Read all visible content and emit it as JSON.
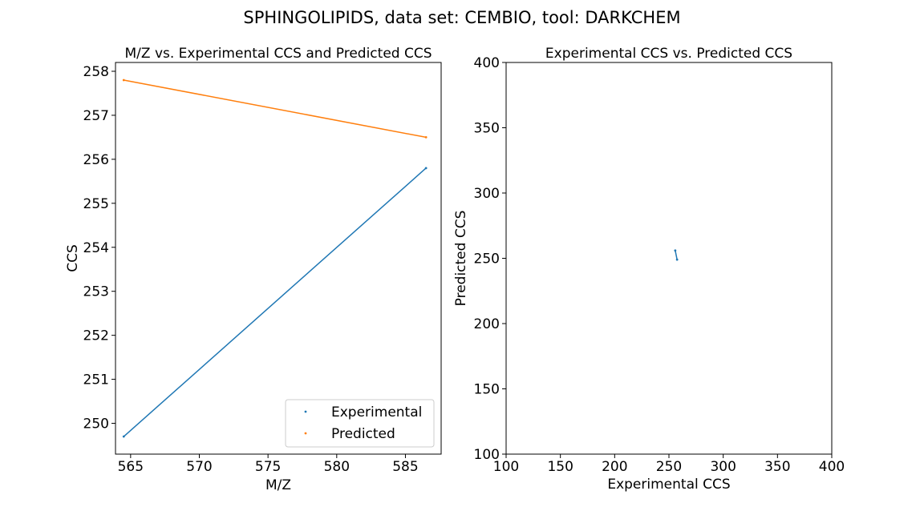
{
  "figure": {
    "suptitle": "SPHINGOLIPIDS, data set: CEMBIO, tool: DARKCHEM"
  },
  "chart_data": [
    {
      "type": "line",
      "title": "M/Z vs. Experimental CCS and Predicted CCS",
      "xlabel": "M/Z",
      "ylabel": "CCS",
      "xlim": [
        563.9,
        587.6
      ],
      "ylim": [
        249.3,
        258.2
      ],
      "xticks": [
        565,
        570,
        575,
        580,
        585
      ],
      "yticks": [
        250,
        251,
        252,
        253,
        254,
        255,
        256,
        257,
        258
      ],
      "grid": false,
      "legend": "lower-right",
      "series": [
        {
          "name": "Experimental",
          "color": "#1f77b4",
          "x": [
            564.5,
            586.5
          ],
          "y": [
            249.7,
            255.8
          ]
        },
        {
          "name": "Predicted",
          "color": "#ff7f0e",
          "x": [
            564.5,
            586.5
          ],
          "y": [
            257.8,
            256.5
          ]
        }
      ]
    },
    {
      "type": "scatter",
      "title": "Experimental CCS vs. Predicted CCS",
      "xlabel": "Experimental CCS",
      "ylabel": "Predicted CCS",
      "xlim": [
        100,
        400
      ],
      "ylim": [
        100,
        400
      ],
      "xticks": [
        100,
        150,
        200,
        250,
        300,
        350,
        400
      ],
      "yticks": [
        100,
        150,
        200,
        250,
        300,
        350,
        400
      ],
      "grid": false,
      "series": [
        {
          "color": "#1f77b4",
          "x": [
            255.8,
            257.5
          ],
          "y": [
            256.0,
            249.0
          ]
        }
      ]
    }
  ]
}
